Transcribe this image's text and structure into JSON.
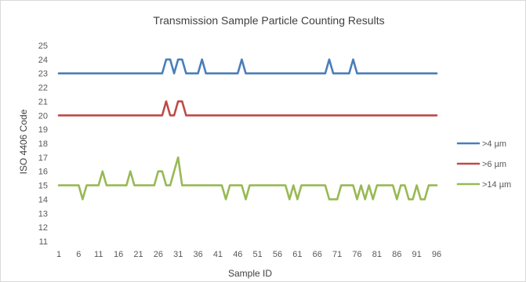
{
  "chart_data": {
    "type": "line",
    "title": "Transmission Sample Particle Counting Results",
    "xlabel": "Sample ID",
    "ylabel": "ISO 4406 Code",
    "x_tick_labels": [
      1,
      6,
      11,
      16,
      21,
      26,
      31,
      36,
      41,
      46,
      51,
      56,
      61,
      66,
      71,
      76,
      81,
      86,
      91,
      96
    ],
    "y_tick_labels": [
      11,
      12,
      13,
      14,
      15,
      16,
      17,
      18,
      19,
      20,
      21,
      22,
      23,
      24,
      25
    ],
    "xlim": [
      1,
      96
    ],
    "ylim": [
      11,
      25
    ],
    "grid": false,
    "legend_position": "right",
    "series": [
      {
        "name": ">4 µm",
        "color": "#4a7ebb",
        "points": [
          [
            1,
            23
          ],
          [
            27,
            23
          ],
          [
            28,
            24
          ],
          [
            29,
            24
          ],
          [
            30,
            23
          ],
          [
            31,
            24
          ],
          [
            32,
            24
          ],
          [
            33,
            23
          ],
          [
            36,
            23
          ],
          [
            37,
            24
          ],
          [
            38,
            23
          ],
          [
            46,
            23
          ],
          [
            47,
            24
          ],
          [
            48,
            23
          ],
          [
            68,
            23
          ],
          [
            69,
            24
          ],
          [
            70,
            23
          ],
          [
            74,
            23
          ],
          [
            75,
            24
          ],
          [
            76,
            23
          ],
          [
            96,
            23
          ]
        ]
      },
      {
        "name": ">6 µm",
        "color": "#be4b48",
        "points": [
          [
            1,
            20
          ],
          [
            27,
            20
          ],
          [
            28,
            21
          ],
          [
            29,
            20
          ],
          [
            30,
            20
          ],
          [
            31,
            21
          ],
          [
            32,
            21
          ],
          [
            33,
            20
          ],
          [
            96,
            20
          ]
        ]
      },
      {
        "name": ">14 µm",
        "color": "#98b954",
        "points": [
          [
            1,
            15
          ],
          [
            6,
            15
          ],
          [
            7,
            14
          ],
          [
            8,
            15
          ],
          [
            11,
            15
          ],
          [
            12,
            16
          ],
          [
            13,
            15
          ],
          [
            18,
            15
          ],
          [
            19,
            16
          ],
          [
            20,
            15
          ],
          [
            25,
            15
          ],
          [
            26,
            16
          ],
          [
            27,
            16
          ],
          [
            28,
            15
          ],
          [
            29,
            15
          ],
          [
            30,
            16
          ],
          [
            31,
            17
          ],
          [
            32,
            15
          ],
          [
            42,
            15
          ],
          [
            43,
            14
          ],
          [
            44,
            15
          ],
          [
            47,
            15
          ],
          [
            48,
            14
          ],
          [
            49,
            15
          ],
          [
            58,
            15
          ],
          [
            59,
            14
          ],
          [
            60,
            15
          ],
          [
            61,
            14
          ],
          [
            62,
            15
          ],
          [
            68,
            15
          ],
          [
            69,
            14
          ],
          [
            71,
            14
          ],
          [
            72,
            15
          ],
          [
            75,
            15
          ],
          [
            76,
            14
          ],
          [
            77,
            15
          ],
          [
            78,
            14
          ],
          [
            79,
            15
          ],
          [
            80,
            14
          ],
          [
            81,
            15
          ],
          [
            85,
            15
          ],
          [
            86,
            14
          ],
          [
            87,
            15
          ],
          [
            88,
            15
          ],
          [
            89,
            14
          ],
          [
            90,
            14
          ],
          [
            91,
            15
          ],
          [
            92,
            14
          ],
          [
            93,
            14
          ],
          [
            94,
            15
          ],
          [
            96,
            15
          ]
        ]
      }
    ]
  }
}
